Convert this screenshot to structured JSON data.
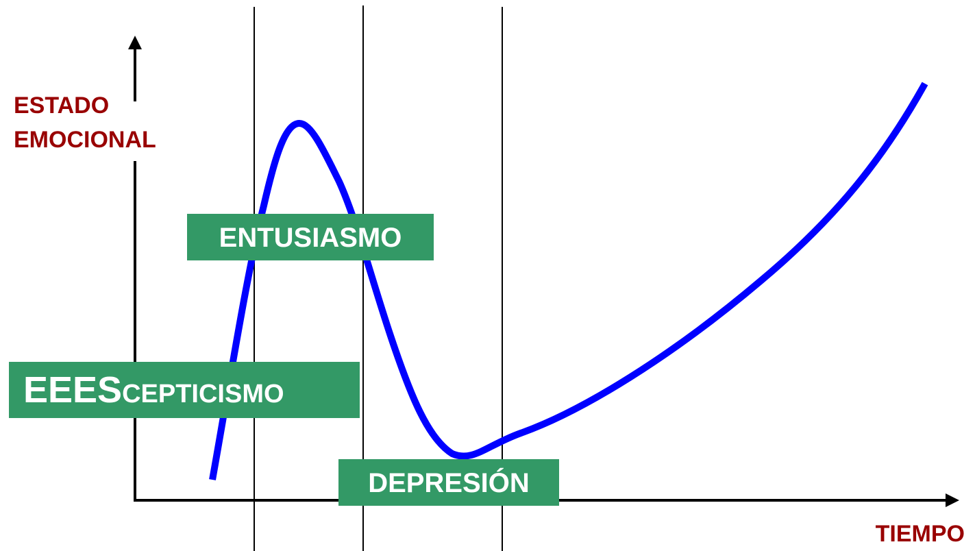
{
  "axes": {
    "y_label": [
      "ESTADO",
      "EMOCIONAL"
    ],
    "x_label": "TIEMPO"
  },
  "stages": [
    {
      "label": "ENTUSIASMO"
    },
    {
      "lead": "EEES",
      "rest": "CEPTICISMO"
    },
    {
      "label": "DEPRESIÓN"
    }
  ]
}
